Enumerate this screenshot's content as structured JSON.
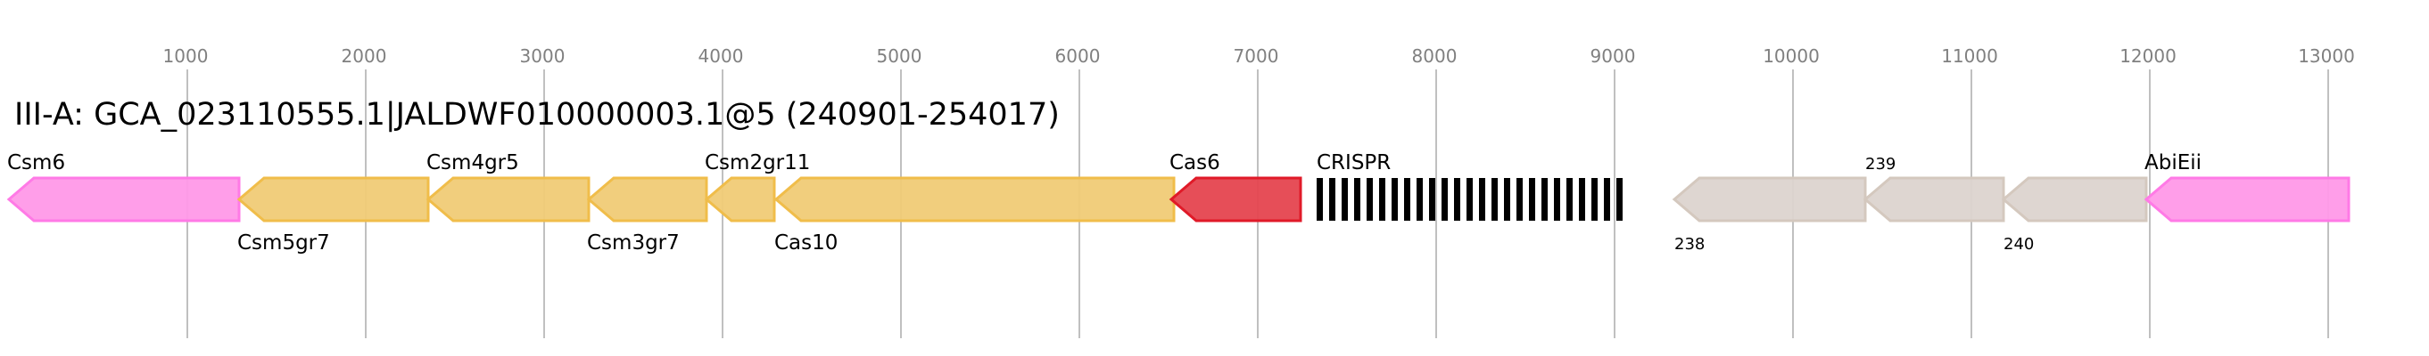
{
  "title": "III-A: GCA_023110555.1|JALDWF010000003.1@5 (240901-254017)",
  "axis": {
    "ticks": [
      1000,
      2000,
      3000,
      4000,
      5000,
      6000,
      7000,
      8000,
      9000,
      10000,
      11000,
      12000,
      13000
    ],
    "grid": true
  },
  "colors": {
    "pink": {
      "fill": "#ff99e8",
      "stroke": "#ff7ae6"
    },
    "yellow": {
      "fill": "#f0cb76",
      "stroke": "#f0bd4a"
    },
    "red": {
      "fill": "#e5444f",
      "stroke": "#e01a28"
    },
    "grey": {
      "fill": "#dcd4cf",
      "stroke": "#d4c8be"
    },
    "crispr": "#000000"
  },
  "genes": [
    {
      "label": "Csm6",
      "start": 0,
      "end": 1290,
      "strand": "-",
      "color": "pink",
      "label_pos": "above",
      "small": false
    },
    {
      "label": "Csm5gr7",
      "start": 1290,
      "end": 2350,
      "strand": "-",
      "color": "yellow",
      "label_pos": "below",
      "small": false
    },
    {
      "label": "Csm4gr5",
      "start": 2350,
      "end": 3250,
      "strand": "-",
      "color": "yellow",
      "label_pos": "above",
      "small": false
    },
    {
      "label": "Csm3gr7",
      "start": 3250,
      "end": 3910,
      "strand": "-",
      "color": "yellow",
      "label_pos": "below",
      "small": false
    },
    {
      "label": "Csm2gr11",
      "start": 3910,
      "end": 4290,
      "strand": "-",
      "color": "yellow",
      "label_pos": "above",
      "small": false
    },
    {
      "label": "Cas10",
      "start": 4300,
      "end": 6530,
      "strand": "-",
      "color": "yellow",
      "label_pos": "below",
      "small": false
    },
    {
      "label": "Cas6",
      "start": 6515,
      "end": 7240,
      "strand": "-",
      "color": "red",
      "label_pos": "above",
      "small": false
    },
    {
      "label": "238",
      "start": 9335,
      "end": 10405,
      "strand": "-",
      "color": "grey",
      "label_pos": "below",
      "small": true
    },
    {
      "label": "239",
      "start": 10405,
      "end": 11180,
      "strand": "-",
      "color": "grey",
      "label_pos": "above",
      "small": true
    },
    {
      "label": "240",
      "start": 11180,
      "end": 11980,
      "strand": "-",
      "color": "grey",
      "label_pos": "below",
      "small": true
    },
    {
      "label": "AbiEii",
      "start": 11980,
      "end": 13115,
      "strand": "-",
      "color": "pink",
      "label_pos": "above",
      "small": false
    }
  ],
  "crispr": {
    "label": "CRISPR",
    "start": 7330,
    "end": 9080,
    "repeats": 25
  }
}
